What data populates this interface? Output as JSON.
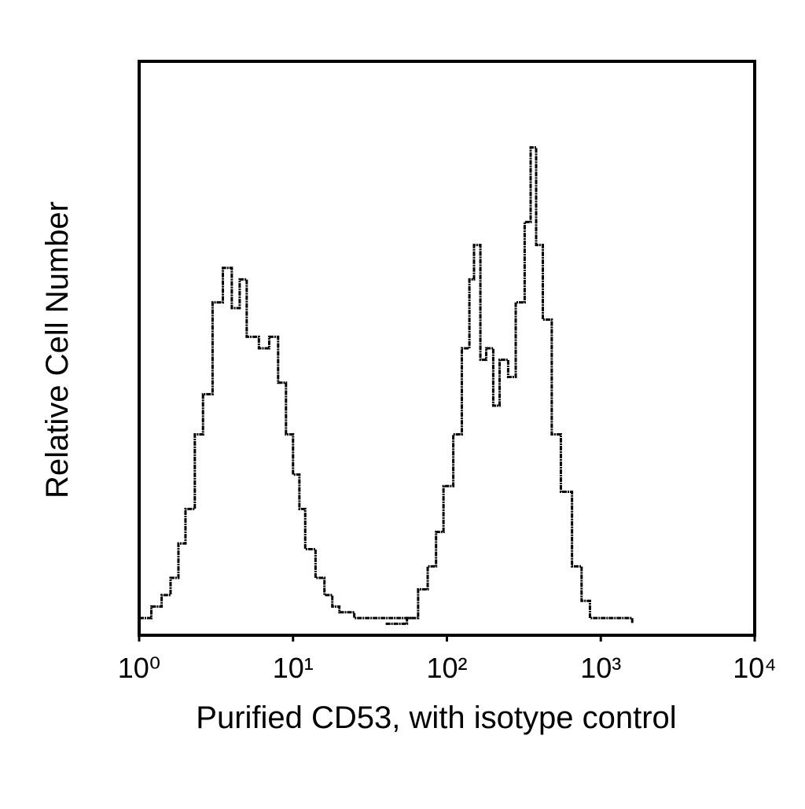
{
  "chart_data": {
    "type": "histogram-line",
    "x_label": "Purified CD53, with isotype control",
    "y_label": "Relative Cell Number",
    "log_x": true,
    "xlim": [
      1,
      10000
    ],
    "xticks": [
      {
        "value": 1,
        "label": "10⁰"
      },
      {
        "value": 10,
        "label": "10¹"
      },
      {
        "value": 100,
        "label": "10²"
      },
      {
        "value": 1000,
        "label": "10³"
      },
      {
        "value": 10000,
        "label": "10⁴"
      }
    ],
    "ylim": [
      0,
      100
    ],
    "series": [
      {
        "color": "#000000",
        "x": [
          1.0,
          1.2,
          1.4,
          1.6,
          1.8,
          2.0,
          2.3,
          2.6,
          3.0,
          3.5,
          4.0,
          4.5,
          5.0,
          6.0,
          7.0,
          8.0,
          9.0,
          10,
          11,
          12,
          14,
          16,
          18,
          20,
          25,
          30,
          40,
          50,
          60
        ],
        "values": [
          3,
          5,
          7,
          10,
          16,
          22,
          35,
          42,
          58,
          64,
          57,
          62,
          52,
          50,
          52,
          44,
          35,
          28,
          22,
          15,
          10,
          7,
          5,
          4,
          3,
          3,
          3,
          3,
          3
        ]
      },
      {
        "color": "#000000",
        "x": [
          40,
          55,
          65,
          75,
          85,
          95,
          110,
          125,
          140,
          150,
          165,
          180,
          200,
          220,
          250,
          280,
          320,
          350,
          380,
          420,
          480,
          550,
          650,
          750,
          850,
          1000,
          1200,
          1600
        ],
        "values": [
          2,
          3,
          8,
          12,
          18,
          26,
          35,
          50,
          62,
          68,
          48,
          50,
          40,
          48,
          45,
          58,
          72,
          85,
          68,
          55,
          35,
          25,
          12,
          6,
          3,
          3,
          3,
          2
        ]
      }
    ]
  }
}
